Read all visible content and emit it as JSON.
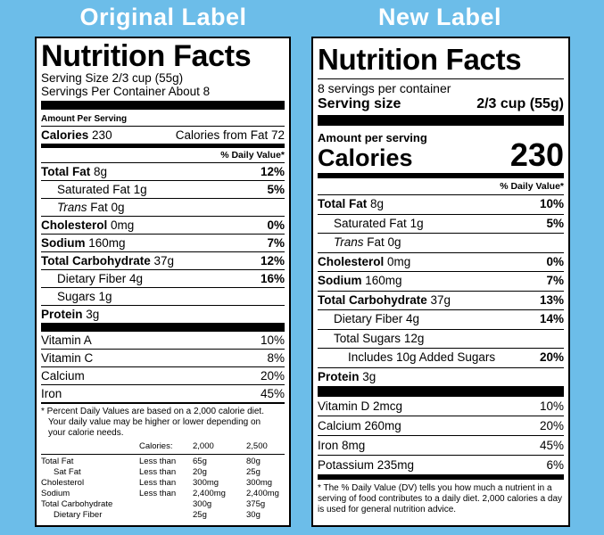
{
  "headings": {
    "original": "Original Label",
    "new": "New Label"
  },
  "original": {
    "title": "Nutrition Facts",
    "serving_size": "Serving Size 2/3 cup (55g)",
    "servings_per_container": "Servings Per Container About 8",
    "amount_per_serving": "Amount Per Serving",
    "calories_label": "Calories",
    "calories_value": "230",
    "calories_from_fat": "Calories from Fat 72",
    "dv_header": "% Daily Value*",
    "nutrients": [
      {
        "name": "Total Fat",
        "amount": "8g",
        "dv": "12%"
      },
      {
        "name": "Saturated Fat",
        "amount": "1g",
        "dv": "5%"
      },
      {
        "name": "Trans",
        "amount": "Fat 0g",
        "dv": ""
      },
      {
        "name": "Cholesterol",
        "amount": "0mg",
        "dv": "0%"
      },
      {
        "name": "Sodium",
        "amount": "160mg",
        "dv": "7%"
      },
      {
        "name": "Total Carbohydrate",
        "amount": "37g",
        "dv": "12%"
      },
      {
        "name": "Dietary Fiber",
        "amount": "4g",
        "dv": "16%"
      },
      {
        "name": "Sugars",
        "amount": "1g",
        "dv": ""
      },
      {
        "name": "Protein",
        "amount": "3g",
        "dv": ""
      }
    ],
    "vitamins": [
      {
        "name": "Vitamin A",
        "dv": "10%"
      },
      {
        "name": "Vitamin C",
        "dv": "8%"
      },
      {
        "name": "Calcium",
        "dv": "20%"
      },
      {
        "name": "Iron",
        "dv": "45%"
      }
    ],
    "footnote": [
      "* Percent Daily Values are based on a 2,000 calorie diet.",
      "Your daily value may be higher or lower depending on",
      "your calorie needs."
    ],
    "dv_table": {
      "header": [
        "",
        "Calories:",
        "2,000",
        "2,500"
      ],
      "rows": [
        [
          "Total Fat",
          "Less than",
          "65g",
          "80g"
        ],
        [
          "Sat Fat",
          "Less than",
          "20g",
          "25g"
        ],
        [
          "Cholesterol",
          "Less than",
          "300mg",
          "300mg"
        ],
        [
          "Sodium",
          "Less than",
          "2,400mg",
          "2,400mg"
        ],
        [
          "Total Carbohydrate",
          "",
          "300g",
          "375g"
        ],
        [
          "Dietary Fiber",
          "",
          "25g",
          "30g"
        ]
      ]
    }
  },
  "new": {
    "title": "Nutrition Facts",
    "servings_per_container": "8 servings per container",
    "serving_size_label": "Serving size",
    "serving_size_value": "2/3 cup (55g)",
    "amount_per_serving": "Amount per serving",
    "calories_label": "Calories",
    "calories_value": "230",
    "dv_header": "% Daily Value*",
    "nutrients": [
      {
        "name": "Total Fat",
        "amount": "8g",
        "dv": "10%"
      },
      {
        "name": "Saturated Fat",
        "amount": "1g",
        "dv": "5%"
      },
      {
        "name": "Trans",
        "amount": "Fat 0g",
        "dv": ""
      },
      {
        "name": "Cholesterol",
        "amount": "0mg",
        "dv": "0%"
      },
      {
        "name": "Sodium",
        "amount": "160mg",
        "dv": "7%"
      },
      {
        "name": "Total Carbohydrate",
        "amount": "37g",
        "dv": "13%"
      },
      {
        "name": "Dietary Fiber",
        "amount": "4g",
        "dv": "14%"
      },
      {
        "name": "Total Sugars",
        "amount": "12g",
        "dv": ""
      },
      {
        "name": "Includes 10g Added Sugars",
        "amount": "",
        "dv": "20%"
      },
      {
        "name": "Protein",
        "amount": "3g",
        "dv": ""
      }
    ],
    "vitamins": [
      {
        "name": "Vitamin D 2mcg",
        "dv": "10%"
      },
      {
        "name": "Calcium 260mg",
        "dv": "20%"
      },
      {
        "name": "Iron 8mg",
        "dv": "45%"
      },
      {
        "name": "Potassium 235mg",
        "dv": "6%"
      }
    ],
    "footnote": "* The % Daily Value (DV) tells you how much a nutrient in a serving of food contributes to a daily diet. 2,000 calories a day is used for general nutrition advice."
  }
}
